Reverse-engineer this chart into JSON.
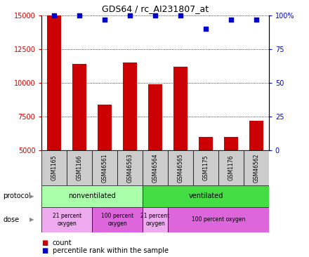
{
  "title": "GDS64 / rc_AI231807_at",
  "samples": [
    "GSM1165",
    "GSM1166",
    "GSM46561",
    "GSM46563",
    "GSM46564",
    "GSM46565",
    "GSM1175",
    "GSM1176",
    "GSM46562"
  ],
  "counts": [
    15000,
    11400,
    8400,
    11500,
    9900,
    11200,
    6000,
    6000,
    7200
  ],
  "percentiles": [
    100,
    100,
    97,
    100,
    100,
    100,
    90,
    97,
    97
  ],
  "ylim_left": [
    5000,
    15000
  ],
  "ylim_right": [
    0,
    100
  ],
  "yticks_left": [
    5000,
    7500,
    10000,
    12500,
    15000
  ],
  "yticks_right": [
    0,
    25,
    50,
    75,
    100
  ],
  "bar_color": "#cc0000",
  "scatter_color": "#0000cc",
  "protocol_groups": [
    {
      "label": "nonventilated",
      "start": 0,
      "end": 4,
      "color": "#aaffaa"
    },
    {
      "label": "ventilated",
      "start": 4,
      "end": 9,
      "color": "#44dd44"
    }
  ],
  "dose_groups": [
    {
      "label": "21 percent\noxygen",
      "start": 0,
      "end": 2,
      "color": "#eeaaee"
    },
    {
      "label": "100 percent\noxygen",
      "start": 2,
      "end": 4,
      "color": "#dd66dd"
    },
    {
      "label": "21 percent\noxygen",
      "start": 4,
      "end": 5,
      "color": "#eeaaee"
    },
    {
      "label": "100 percent oxygen",
      "start": 5,
      "end": 9,
      "color": "#dd66dd"
    }
  ],
  "protocol_label": "protocol",
  "dose_label": "dose",
  "legend_count_label": "count",
  "legend_pct_label": "percentile rank within the sample",
  "left_axis_color": "#cc0000",
  "right_axis_color": "#0000cc",
  "sample_area_color": "#cccccc",
  "fig_width": 4.4,
  "fig_height": 3.66,
  "dpi": 100
}
